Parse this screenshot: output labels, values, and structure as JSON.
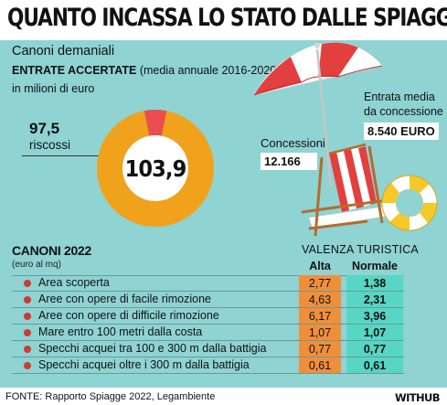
{
  "header": {
    "title": "QUANTO INCASSA LO STATO DALLE SPIAGGE"
  },
  "intro": {
    "line1": "Canoni demaniali",
    "line2_bold": "ENTRATE ACCERTATE",
    "line2_rest": " (media annuale 2016-2020)",
    "line3": "in milioni di euro"
  },
  "colors": {
    "panel": "#8fd3d3",
    "donut_main": "#f0a21d",
    "donut_slice": "#e94e4e",
    "alta": "#f08f3a",
    "normale": "#57d6c5",
    "bullet": "#cc3b34"
  },
  "chart_data": [
    {
      "type": "pie",
      "total_label": "103,9",
      "total": 103.9,
      "slices": [
        {
          "name": "riscossi",
          "value": 97.5,
          "label": "97,5",
          "color": "#f0a21d"
        },
        {
          "name": "",
          "value": 6.4,
          "label": "",
          "color": "#e94e4e"
        }
      ],
      "legend": [
        {
          "value_label": "97,5",
          "text": "riscossi"
        }
      ]
    },
    {
      "type": "table",
      "title": "CANONI 2022",
      "subtitle": "(euro al mq)",
      "group_header": "VALENZA TURISTICA",
      "columns": [
        "Alta",
        "Normale"
      ],
      "rows": [
        {
          "label": "Area scoperta",
          "alta": "2,77",
          "normale": "1,38"
        },
        {
          "label": "Aree con opere di facile rimozione",
          "alta": "4,63",
          "normale": "2,31"
        },
        {
          "label": "Aree con opere di difficile rimozione",
          "alta": "6,17",
          "normale": "3,96"
        },
        {
          "label": "Mare entro 100 metri dalla costa",
          "alta": "1,07",
          "normale": "1,07"
        },
        {
          "label": "Specchi acquei tra 100 e 300 m dalla battigia",
          "alta": "0,77",
          "normale": "0,77"
        },
        {
          "label": "Specchi acquei oltre i 300 m dalla battigia",
          "alta": "0,61",
          "normale": "0,61"
        }
      ]
    }
  ],
  "callouts": {
    "entrata_label_1": "Entrata media",
    "entrata_label_2": "da concessione",
    "entrata_value": "8.540 EURO",
    "concessioni_label": "Concessioni",
    "concessioni_value": "12.166"
  },
  "footer": {
    "source": "FONTE: Rapporto Spiagge 2022, Legambiente",
    "brand": "WITHUB"
  }
}
